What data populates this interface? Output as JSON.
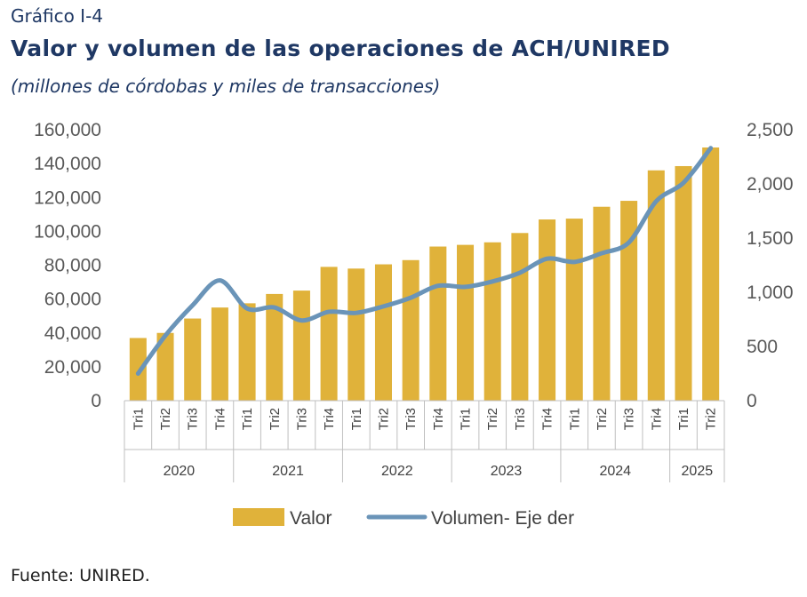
{
  "header": {
    "figure_number": "Gráfico I-4",
    "title": "Valor y volumen de las operaciones de ACH/UNIRED",
    "subtitle": "(millones de córdobas y miles de transacciones)"
  },
  "footer": {
    "source": "Fuente: UNIRED."
  },
  "chart_data": {
    "type": "bar",
    "title": "Valor y volumen de las operaciones de ACH/UNIRED",
    "subtitle": "(millones de córdobas y miles de transacciones)",
    "categories": [
      "Tri1",
      "Tri2",
      "Tri3",
      "Tri4",
      "Tri1",
      "Tri2",
      "Tri3",
      "Tri4",
      "Tri1",
      "Tri2",
      "Tri3",
      "Tri4",
      "Tri1",
      "Tri2",
      "Tri3",
      "Tri4",
      "Tri1",
      "Tri2",
      "Tri3",
      "Tri4",
      "Tri1",
      "Tri2"
    ],
    "year_groups": [
      {
        "label": "2020",
        "count": 4
      },
      {
        "label": "2021",
        "count": 4
      },
      {
        "label": "2022",
        "count": 4
      },
      {
        "label": "2023",
        "count": 4
      },
      {
        "label": "2024",
        "count": 4
      },
      {
        "label": "2025",
        "count": 2
      }
    ],
    "series": [
      {
        "name": "Valor",
        "type": "bar",
        "axis": "left",
        "color": "#e0b23a",
        "values": [
          37000,
          40000,
          48500,
          55000,
          57500,
          63000,
          65000,
          79000,
          78000,
          80500,
          83000,
          91000,
          92000,
          93500,
          99000,
          107000,
          107500,
          114500,
          118000,
          136000,
          138500,
          149500
        ]
      },
      {
        "name": "Volumen- Eje der",
        "type": "line",
        "axis": "right",
        "color": "#6a94b8",
        "values": [
          250,
          600,
          880,
          1110,
          850,
          860,
          740,
          820,
          810,
          870,
          950,
          1060,
          1050,
          1100,
          1180,
          1310,
          1280,
          1360,
          1460,
          1840,
          2010,
          2330
        ]
      }
    ],
    "y_left": {
      "ylim": [
        0,
        160000
      ],
      "ticks": [
        "0",
        "20,000",
        "40,000",
        "60,000",
        "80,000",
        "100,000",
        "120,000",
        "140,000",
        "160,000"
      ]
    },
    "y_right": {
      "ylim": [
        0,
        2500
      ],
      "ticks": [
        "0",
        "500",
        "1,000",
        "1,500",
        "2,000",
        "2,500"
      ]
    },
    "grid": false,
    "legend": "bottom"
  }
}
